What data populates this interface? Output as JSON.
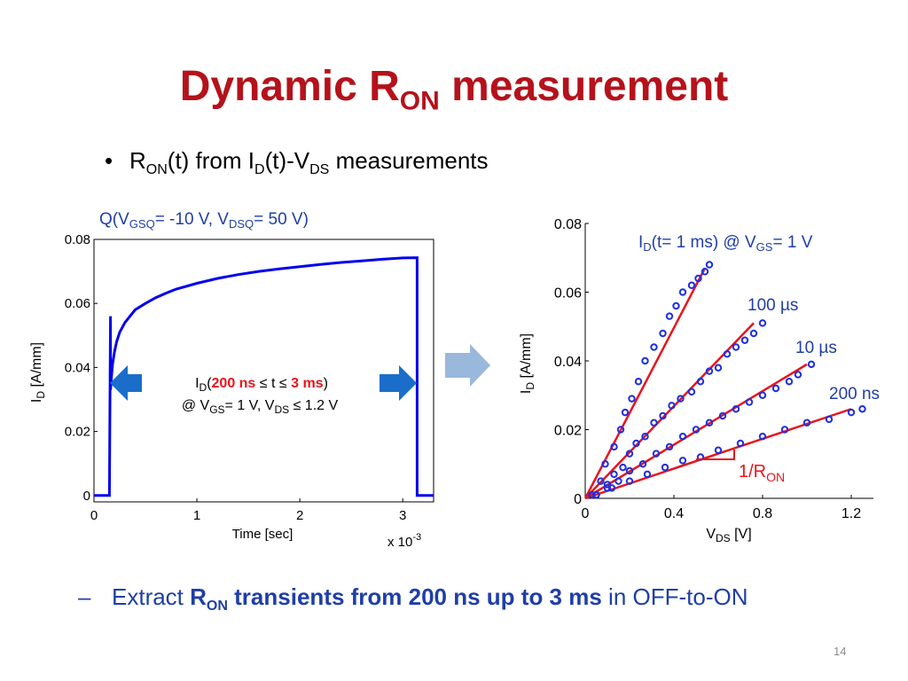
{
  "slide": {
    "title_main": "Dynamic R",
    "title_sub": "ON",
    "title_rest": " measurement",
    "bullet": {
      "dot": "•",
      "p1": "R",
      "s1": "ON",
      "p2": "(t) from I",
      "s2": "D",
      "p3": "(t)-V",
      "s3": "DS",
      "p4": " measurements"
    },
    "bottom": {
      "dash": "–",
      "p1": "Extract ",
      "b1": "R",
      "b1sub": "ON",
      "b2": " transients from 200 ns up to 3 ms",
      "p2": " in OFF-to-ON"
    },
    "page_number": "14"
  },
  "colors": {
    "title": "#b5121b",
    "accent_blue": "#1f3ea8",
    "trace_blue": "#0000ee",
    "fit_red": "#e8141c",
    "arrow_blue": "#1a6ec9",
    "arrow_light": "#9ab7dc"
  },
  "chart_data": [
    {
      "type": "line",
      "annotation_top": {
        "p1": "Q(V",
        "s1": "GSQ",
        "p2": "= -10 V, V",
        "s2": "DSQ",
        "p3": "= 50 V)"
      },
      "annotation_center": {
        "l1": {
          "p1": "I",
          "s1": "D",
          "p2": "(",
          "r1": "200 ns",
          "p3": " ≤ t ≤ ",
          "r2": "3 ms",
          "p4": ")"
        },
        "l2": {
          "p1": "@ V",
          "s1": "GS",
          "p2": "= 1 V, V",
          "s2": "DS",
          "p3": " ≤ 1.2 V"
        }
      },
      "xlabel": "Time [sec]",
      "xlabel_multiplier": "x 10",
      "xlabel_exp": "-3",
      "ylabel": "I",
      "ylabel_sub": "D",
      "ylabel_rest": " [A/mm]",
      "xlim": [
        0,
        3.3
      ],
      "ylim": [
        -0.002,
        0.08
      ],
      "x_ticks": [
        "0",
        "1",
        "2",
        "3"
      ],
      "y_ticks": [
        "0",
        "0.02",
        "0.04",
        "0.06",
        "0.08"
      ],
      "x_tick_values": [
        0,
        1,
        2,
        3
      ],
      "y_tick_values": [
        0,
        0.02,
        0.04,
        0.06,
        0.08
      ],
      "series": [
        {
          "x": [
            0,
            0.15,
            0.16,
            0.16,
            0.17,
            0.18,
            0.2,
            0.22,
            0.25,
            0.3,
            0.35,
            0.4,
            0.5,
            0.6,
            0.7,
            0.8,
            1.0,
            1.2,
            1.4,
            1.6,
            1.8,
            2.0,
            2.2,
            2.4,
            2.6,
            2.8,
            3.0,
            3.14,
            3.14,
            3.16,
            3.3
          ],
          "y": [
            0,
            0,
            0.056,
            0.033,
            0.037,
            0.041,
            0.045,
            0.048,
            0.051,
            0.054,
            0.056,
            0.058,
            0.06,
            0.0618,
            0.0632,
            0.0645,
            0.0663,
            0.0678,
            0.069,
            0.07,
            0.0708,
            0.0715,
            0.0722,
            0.0728,
            0.0733,
            0.0738,
            0.0742,
            0.0743,
            0,
            0,
            0
          ]
        }
      ]
    },
    {
      "type": "scatter",
      "xlabel": "V",
      "xlabel_sub": "DS",
      "xlabel_rest": " [V]",
      "ylabel": "I",
      "ylabel_sub": "D",
      "ylabel_rest": " [A/mm]",
      "xlim": [
        0,
        1.3
      ],
      "ylim": [
        0,
        0.08
      ],
      "x_ticks": [
        "0",
        "0.4",
        "0.8",
        "1.2"
      ],
      "y_ticks": [
        "0",
        "0.02",
        "0.04",
        "0.06",
        "0.08"
      ],
      "x_tick_values": [
        0,
        0.4,
        0.8,
        1.2
      ],
      "y_tick_values": [
        0,
        0.02,
        0.04,
        0.06,
        0.08
      ],
      "slope_label": "1/R",
      "slope_label_sub": "ON",
      "series": [
        {
          "label_p1": "I",
          "label_s1": "D",
          "label_p2": "(t= 1 ms) @ V",
          "label_s2": "GS",
          "label_p3": "= 1 V",
          "x": [
            0.03,
            0.07,
            0.09,
            0.13,
            0.16,
            0.18,
            0.21,
            0.24,
            0.27,
            0.31,
            0.35,
            0.38,
            0.41,
            0.44,
            0.48,
            0.51,
            0.54,
            0.56
          ],
          "y": [
            0.001,
            0.005,
            0.01,
            0.015,
            0.02,
            0.025,
            0.029,
            0.034,
            0.04,
            0.044,
            0.048,
            0.053,
            0.056,
            0.06,
            0.062,
            0.064,
            0.066,
            0.068
          ],
          "fit_x": [
            0,
            0.54
          ],
          "fit_y": [
            0,
            0.067
          ]
        },
        {
          "label": "100 µs",
          "x": [
            0.05,
            0.1,
            0.13,
            0.17,
            0.2,
            0.23,
            0.27,
            0.31,
            0.35,
            0.39,
            0.43,
            0.48,
            0.52,
            0.56,
            0.6,
            0.64,
            0.68,
            0.72,
            0.76,
            0.8
          ],
          "y": [
            0.001,
            0.004,
            0.007,
            0.009,
            0.013,
            0.016,
            0.018,
            0.022,
            0.024,
            0.027,
            0.029,
            0.031,
            0.034,
            0.037,
            0.038,
            0.042,
            0.044,
            0.046,
            0.048,
            0.051
          ],
          "fit_x": [
            0,
            0.76
          ],
          "fit_y": [
            0,
            0.051
          ]
        },
        {
          "label": "10 µs",
          "x": [
            0.05,
            0.1,
            0.15,
            0.2,
            0.26,
            0.32,
            0.38,
            0.44,
            0.5,
            0.56,
            0.62,
            0.68,
            0.74,
            0.8,
            0.86,
            0.92,
            0.96,
            1.02
          ],
          "y": [
            0.001,
            0.003,
            0.005,
            0.008,
            0.01,
            0.013,
            0.015,
            0.018,
            0.02,
            0.022,
            0.024,
            0.026,
            0.028,
            0.03,
            0.032,
            0.034,
            0.036,
            0.039
          ],
          "fit_x": [
            0,
            1.0
          ],
          "fit_y": [
            0,
            0.039
          ]
        },
        {
          "label": "200 ns",
          "x": [
            0.05,
            0.12,
            0.2,
            0.28,
            0.36,
            0.44,
            0.52,
            0.6,
            0.7,
            0.8,
            0.9,
            1.0,
            1.1,
            1.2,
            1.25
          ],
          "y": [
            0.001,
            0.003,
            0.005,
            0.007,
            0.009,
            0.011,
            0.012,
            0.014,
            0.016,
            0.018,
            0.02,
            0.022,
            0.023,
            0.025,
            0.026
          ],
          "fit_x": [
            0,
            1.2
          ],
          "fit_y": [
            0,
            0.026
          ]
        }
      ]
    }
  ]
}
